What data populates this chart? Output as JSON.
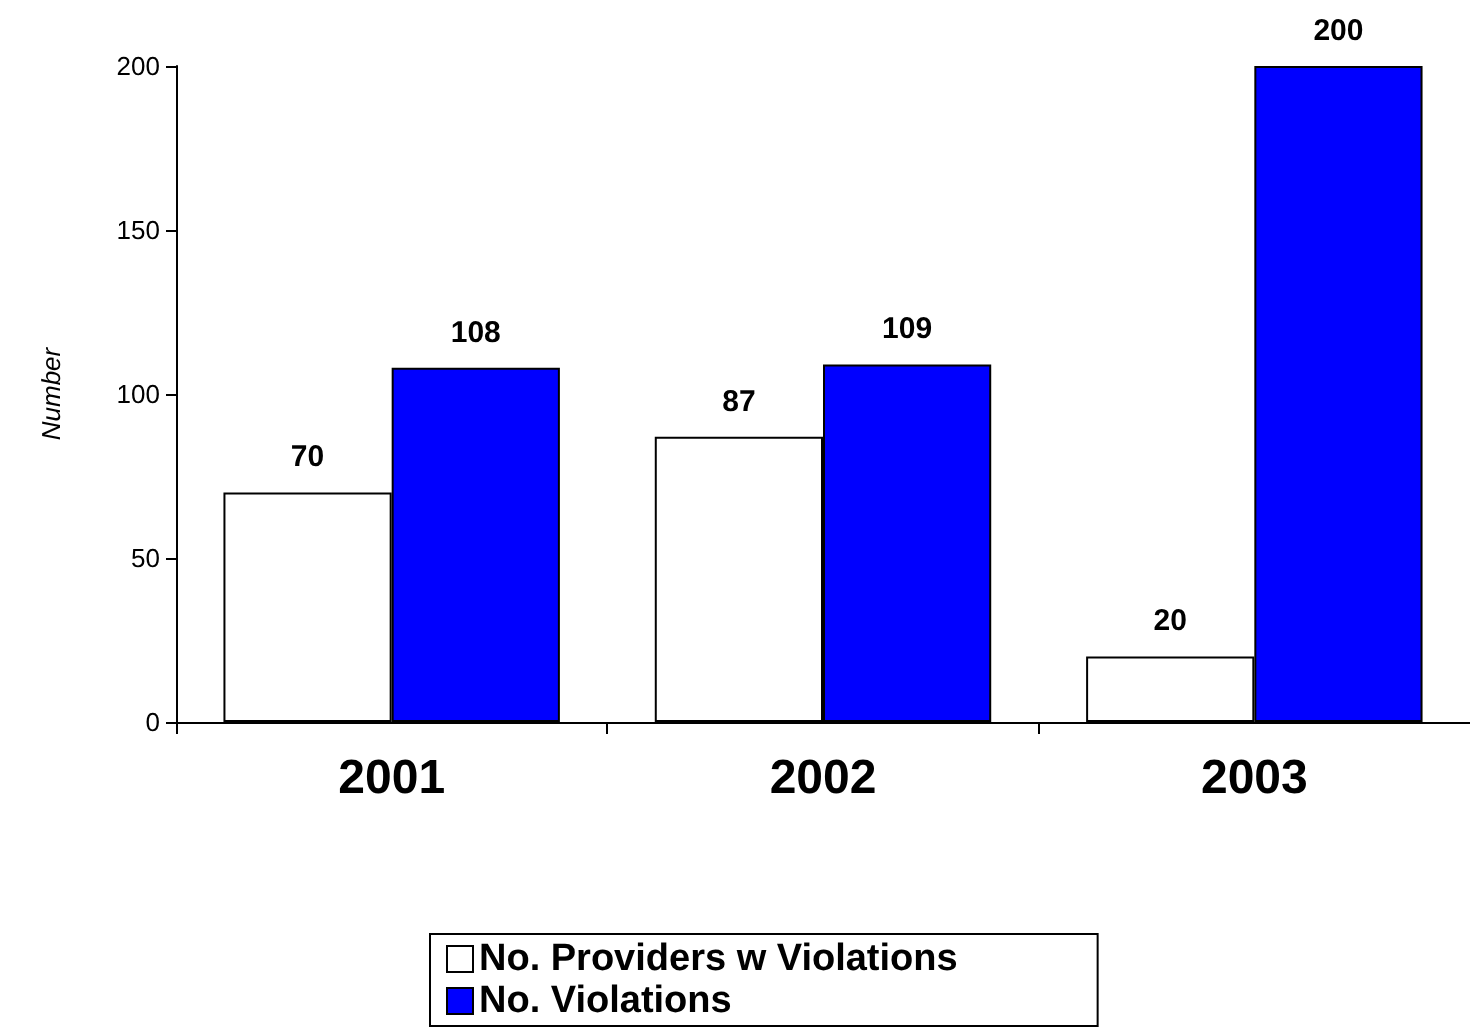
{
  "chart_data": {
    "type": "bar",
    "ylabel": "Number",
    "categories": [
      "2001",
      "2002",
      "2003"
    ],
    "series": [
      {
        "name": "No. Providers w Violations",
        "color": "#ffffff",
        "values": [
          70,
          87,
          20
        ]
      },
      {
        "name": "No. Violations",
        "color": "#0000ff",
        "values": [
          108,
          109,
          200
        ]
      }
    ],
    "ylim": [
      0,
      200
    ],
    "yticks": [
      0,
      50,
      100,
      150,
      200
    ],
    "grid": false,
    "legend": "bottom",
    "data_labels": true
  }
}
